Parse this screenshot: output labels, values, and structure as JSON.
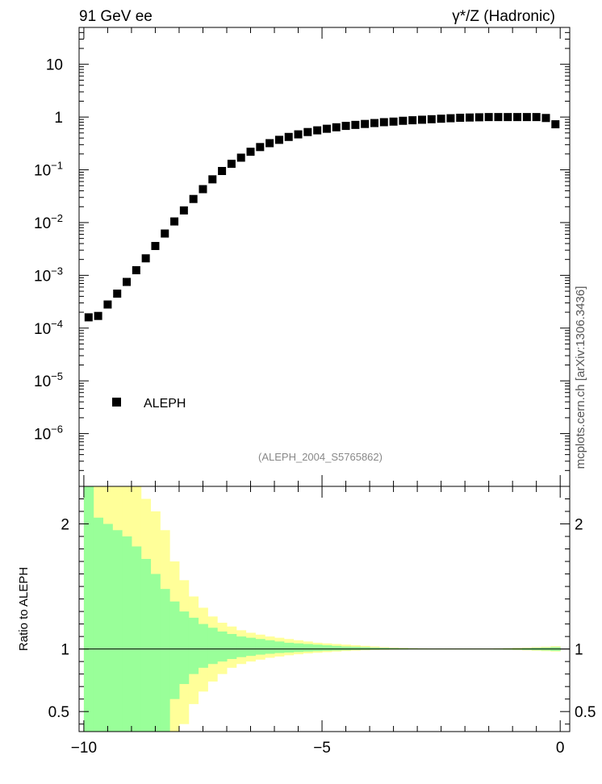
{
  "header": {
    "left": "91 GeV ee",
    "right": "γ*/Z (Hadronic)"
  },
  "watermark": "mcplots.cern.ch [arXiv:1306.3436]",
  "analysis_id": "(ALEPH_2004_S5765862)",
  "colors": {
    "marker": "#000000",
    "band_inner": "#99ff99",
    "band_outer": "#ffff99",
    "reference_line": "#000000",
    "analysis_text": "#888888",
    "watermark": "#555555"
  },
  "chart_data": [
    {
      "type": "scatter",
      "panel": "main",
      "scale": "log-y",
      "xlim": [
        -10.1,
        0.2
      ],
      "ylim": [
        1e-07,
        50
      ],
      "y_ticks": [
        {
          "value": 1e-06,
          "base": "10",
          "exp": "−6"
        },
        {
          "value": 1e-05,
          "base": "10",
          "exp": "−5"
        },
        {
          "value": 0.0001,
          "base": "10",
          "exp": "−4"
        },
        {
          "value": 0.001,
          "base": "10",
          "exp": "−3"
        },
        {
          "value": 0.01,
          "base": "10",
          "exp": "−2"
        },
        {
          "value": 0.1,
          "base": "10",
          "exp": "−1"
        },
        {
          "value": 1,
          "base": "1",
          "exp": ""
        },
        {
          "value": 10,
          "base": "10",
          "exp": ""
        }
      ],
      "legend": {
        "entries": [
          "ALEPH"
        ],
        "position": "lower-left"
      },
      "series": [
        {
          "name": "ALEPH",
          "x": [
            -9.9,
            -9.7,
            -9.5,
            -9.3,
            -9.1,
            -8.9,
            -8.7,
            -8.5,
            -8.3,
            -8.1,
            -7.9,
            -7.7,
            -7.5,
            -7.3,
            -7.1,
            -6.9,
            -6.7,
            -6.5,
            -6.3,
            -6.1,
            -5.9,
            -5.7,
            -5.5,
            -5.3,
            -5.1,
            -4.9,
            -4.7,
            -4.5,
            -4.3,
            -4.1,
            -3.9,
            -3.7,
            -3.5,
            -3.3,
            -3.1,
            -2.9,
            -2.7,
            -2.5,
            -2.3,
            -2.1,
            -1.9,
            -1.7,
            -1.5,
            -1.3,
            -1.1,
            -0.9,
            -0.7,
            -0.5,
            -0.3,
            -0.1
          ],
          "y": [
            0.00016,
            0.00017,
            0.00028,
            0.00045,
            0.00075,
            0.00125,
            0.0021,
            0.0036,
            0.0062,
            0.0105,
            0.017,
            0.028,
            0.043,
            0.066,
            0.095,
            0.13,
            0.17,
            0.22,
            0.27,
            0.32,
            0.37,
            0.42,
            0.47,
            0.52,
            0.56,
            0.6,
            0.64,
            0.68,
            0.71,
            0.74,
            0.77,
            0.8,
            0.82,
            0.85,
            0.87,
            0.89,
            0.91,
            0.93,
            0.95,
            0.97,
            0.98,
            0.99,
            1.0,
            1.0,
            1.0,
            1.0,
            1.0,
            1.0,
            0.96,
            0.73
          ]
        }
      ]
    },
    {
      "type": "area",
      "panel": "ratio",
      "ylabel": "Ratio to ALEPH",
      "xlim": [
        -10.1,
        0.2
      ],
      "ylim": [
        0.34,
        2.3
      ],
      "x_ticks": [
        "−10",
        "−5",
        "0"
      ],
      "y_ticks": [
        "0.5",
        "1",
        "2"
      ],
      "reference": 1,
      "bins": {
        "edges": [
          -10.0,
          -9.8,
          -9.6,
          -9.4,
          -9.2,
          -9.0,
          -8.8,
          -8.6,
          -8.4,
          -8.2,
          -8.0,
          -7.8,
          -7.6,
          -7.4,
          -7.2,
          -7.0,
          -6.8,
          -6.6,
          -6.4,
          -6.2,
          -6.0,
          -5.8,
          -5.6,
          -5.4,
          -5.2,
          -5.0,
          -4.8,
          -4.6,
          -4.4,
          -4.2,
          -4.0,
          -3.8,
          -3.6,
          -3.4,
          -3.2,
          -3.0,
          -2.8,
          -2.6,
          -2.4,
          -2.2,
          -2.0,
          -1.8,
          -1.6,
          -1.4,
          -1.2,
          -1.0,
          -0.8,
          -0.6,
          -0.4,
          -0.2,
          0.0
        ],
        "inner_up": [
          2.3,
          2.05,
          2.0,
          1.95,
          1.9,
          1.82,
          1.72,
          1.6,
          1.48,
          1.38,
          1.3,
          1.25,
          1.2,
          1.17,
          1.14,
          1.12,
          1.1,
          1.09,
          1.08,
          1.07,
          1.06,
          1.05,
          1.045,
          1.04,
          1.035,
          1.03,
          1.025,
          1.02,
          1.018,
          1.015,
          1.012,
          1.01,
          1.008,
          1.006,
          1.005,
          1.004,
          1.003,
          1.003,
          1.003,
          1.003,
          1.003,
          1.003,
          1.003,
          1.004,
          1.005,
          1.006,
          1.008,
          1.01,
          1.012,
          1.015
        ],
        "inner_dn": [
          0.1,
          0.1,
          0.1,
          0.1,
          0.1,
          0.1,
          0.1,
          0.1,
          0.28,
          0.6,
          0.72,
          0.8,
          0.85,
          0.88,
          0.9,
          0.92,
          0.935,
          0.945,
          0.955,
          0.962,
          0.968,
          0.972,
          0.976,
          0.98,
          0.983,
          0.986,
          0.988,
          0.99,
          0.992,
          0.993,
          0.994,
          0.995,
          0.996,
          0.996,
          0.997,
          0.997,
          0.997,
          0.997,
          0.997,
          0.997,
          0.997,
          0.997,
          0.997,
          0.996,
          0.995,
          0.994,
          0.992,
          0.99,
          0.988,
          0.985
        ],
        "outer_up": [
          2.3,
          2.3,
          2.3,
          2.3,
          2.3,
          2.3,
          2.2,
          2.1,
          1.95,
          1.7,
          1.55,
          1.42,
          1.33,
          1.26,
          1.21,
          1.18,
          1.15,
          1.13,
          1.115,
          1.1,
          1.09,
          1.08,
          1.07,
          1.06,
          1.05,
          1.045,
          1.04,
          1.035,
          1.03,
          1.025,
          1.02,
          1.015,
          1.012,
          1.01,
          1.008,
          1.006,
          1.005,
          1.005,
          1.005,
          1.005,
          1.005,
          1.005,
          1.005,
          1.006,
          1.008,
          1.01,
          1.012,
          1.015,
          1.018,
          1.022
        ],
        "outer_dn": [
          0.1,
          0.1,
          0.1,
          0.1,
          0.1,
          0.1,
          0.1,
          0.1,
          0.1,
          0.1,
          0.4,
          0.56,
          0.66,
          0.74,
          0.8,
          0.85,
          0.88,
          0.9,
          0.915,
          0.93,
          0.94,
          0.95,
          0.958,
          0.965,
          0.97,
          0.975,
          0.98,
          0.984,
          0.987,
          0.99,
          0.992,
          0.993,
          0.994,
          0.995,
          0.996,
          0.996,
          0.996,
          0.996,
          0.996,
          0.996,
          0.996,
          0.996,
          0.996,
          0.995,
          0.993,
          0.991,
          0.989,
          0.986,
          0.983,
          0.98
        ]
      }
    }
  ]
}
